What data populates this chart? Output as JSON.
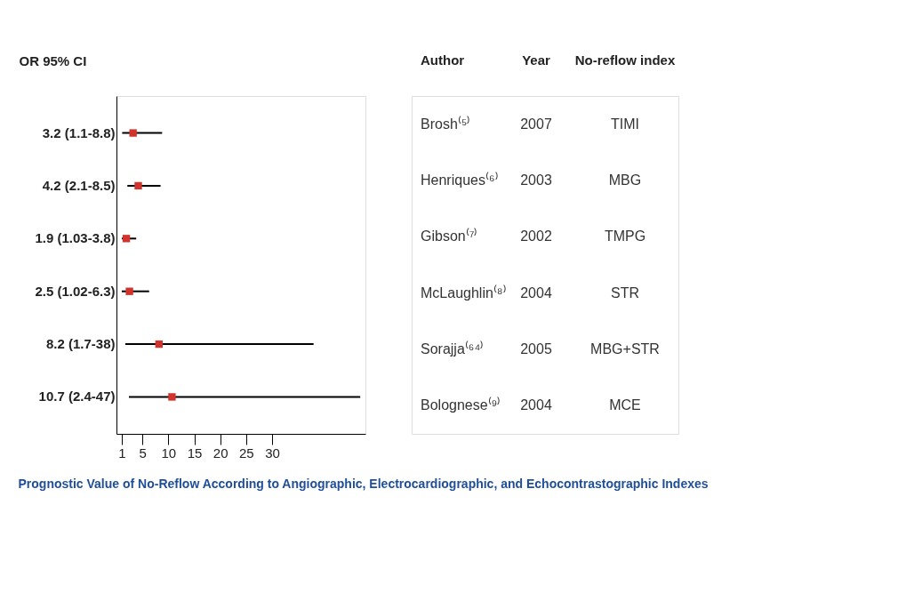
{
  "chart_data": [
    {
      "type": "scatter",
      "orientation": "horizontal",
      "title": "Prognostic Value of No-Reflow According to Angiographic, Electrocardiographic, and Echocontrastographic Indexes",
      "ylabel": "OR 95% CI",
      "categories": [
        "3.2 (1.1-8.8)",
        "4.2 (2.1-8.5)",
        "1.9 (1.03-3.8)",
        "2.5 (1.02-6.3)",
        "8.2 (1.7-38)",
        "10.7 (2.4-47)"
      ],
      "values": [
        3.2,
        4.2,
        1.9,
        2.5,
        8.2,
        10.7
      ],
      "errors": [
        [
          1.1,
          8.8
        ],
        [
          2.1,
          8.5
        ],
        [
          1.03,
          3.8
        ],
        [
          1.02,
          6.3
        ],
        [
          1.7,
          38
        ],
        [
          2.4,
          47
        ]
      ],
      "color": "#d0342c",
      "marker": "square",
      "xlim": [
        0,
        48
      ],
      "xticks": [
        1,
        5,
        10,
        15,
        20,
        25,
        30
      ],
      "grid": false
    },
    {
      "type": "other",
      "annotations": [
        "Author",
        "Year",
        "No-reflow index",
        "Brosh⁽⁵⁾",
        "2007",
        "TIMI",
        "Henriques⁽⁶⁾",
        "2003",
        "MBG",
        "Gibson⁽⁷⁾",
        "2002",
        "TMPG",
        "McLaughlin⁽⁸⁾",
        "2004",
        "STR",
        "Sorajja⁽⁶⁴⁾",
        "2005",
        "MBG+STR",
        "Bolognese⁽⁹⁾",
        "2004",
        "MCE"
      ]
    }
  ]
}
